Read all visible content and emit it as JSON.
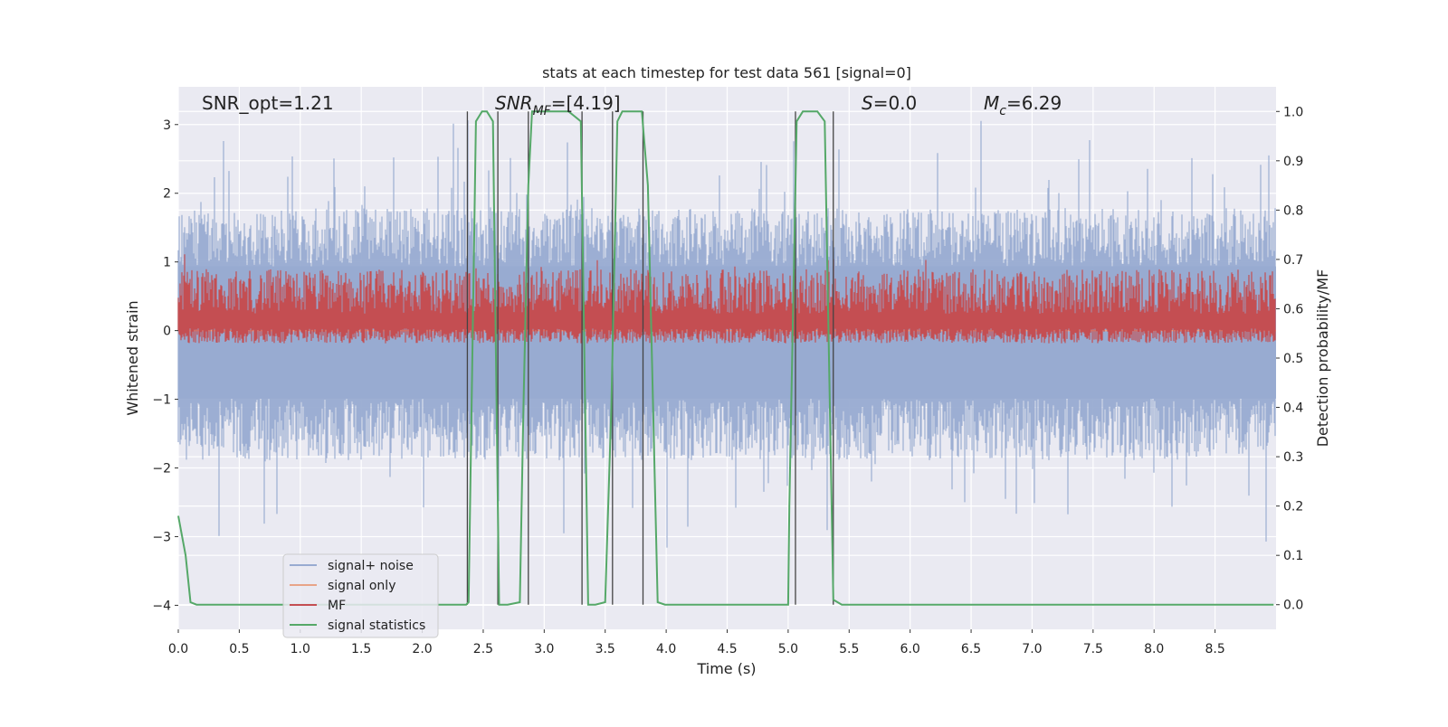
{
  "chart_data": {
    "type": "line",
    "title": "stats at each timestep for test data 561 [signal=0]",
    "xlabel": "Time (s)",
    "ylabel_left": "Whitened strain",
    "ylabel_right": "Detection probability/MF",
    "xlim": [
      0,
      9.0
    ],
    "ylim_left": [
      -4.35,
      3.55
    ],
    "ylim_right": [
      -0.05,
      1.05
    ],
    "x_ticks": [
      0.0,
      0.5,
      1.0,
      1.5,
      2.0,
      2.5,
      3.0,
      3.5,
      4.0,
      4.5,
      5.0,
      5.5,
      6.0,
      6.5,
      7.0,
      7.5,
      8.0,
      8.5
    ],
    "y_ticks_left": [
      3,
      2,
      1,
      0,
      -1,
      -2,
      -3,
      -4
    ],
    "y_ticks_right": [
      1.0,
      0.9,
      0.8,
      0.7,
      0.6,
      0.5,
      0.4,
      0.3,
      0.2,
      0.1,
      0.0
    ],
    "grid": true,
    "legend_position": "lower-left",
    "annotations": {
      "snr_opt": "SNR_opt=1.21",
      "snr_mf_main": "SNR",
      "snr_mf_sub": "MF",
      "snr_mf_value": "=[4.19]",
      "s_italic": "S",
      "s_value": "=0.0",
      "mc_main": "M",
      "mc_sub": "c",
      "mc_value": "=6.29"
    },
    "series": [
      {
        "name": "signal+ noise",
        "color": "#98abd1",
        "axis": "left",
        "band_lower": -1.8,
        "band_upper": 1.7
      },
      {
        "name": "signal only",
        "color": "#e8a488",
        "axis": "left",
        "constant": 0.0
      },
      {
        "name": "MF",
        "color": "#c44e52",
        "axis": "right",
        "baseline": 0.56,
        "typical_peak": 0.66
      },
      {
        "name": "signal statistics",
        "color": "#55a868",
        "axis": "right",
        "x": [
          0.0,
          0.06,
          0.1,
          0.15,
          1.0,
          2.0,
          2.36,
          2.38,
          2.44,
          2.49,
          2.53,
          2.58,
          2.63,
          2.66,
          2.7,
          2.8,
          2.83,
          2.87,
          2.9,
          2.92,
          2.95,
          3.0,
          3.1,
          3.2,
          3.3,
          3.36,
          3.38,
          3.42,
          3.5,
          3.55,
          3.6,
          3.64,
          3.7,
          3.8,
          3.85,
          3.93,
          3.99,
          4.2,
          5.0,
          5.01,
          5.07,
          5.12,
          5.18,
          5.24,
          5.3,
          5.37,
          5.44,
          5.5,
          6.0,
          7.0,
          8.0,
          8.98
        ],
        "y": [
          0.18,
          0.1,
          0.005,
          0.0,
          0.0,
          0.0,
          0.0,
          0.005,
          0.98,
          1.0,
          1.0,
          0.98,
          0.0,
          0.0,
          0.0,
          0.005,
          0.4,
          0.85,
          1.0,
          1.0,
          1.0,
          1.0,
          1.0,
          1.0,
          0.98,
          0.0,
          0.0,
          0.0,
          0.005,
          0.4,
          0.98,
          1.0,
          1.0,
          1.0,
          0.85,
          0.005,
          0.0,
          0.0,
          0.0,
          0.2,
          0.98,
          1.0,
          1.0,
          1.0,
          0.98,
          0.01,
          0.0,
          0.0,
          0.0,
          0.0,
          0.0,
          0.0
        ]
      }
    ],
    "vertical_markers_x": [
      2.37,
      2.62,
      2.87,
      3.31,
      3.56,
      3.81,
      5.06,
      5.37
    ]
  }
}
